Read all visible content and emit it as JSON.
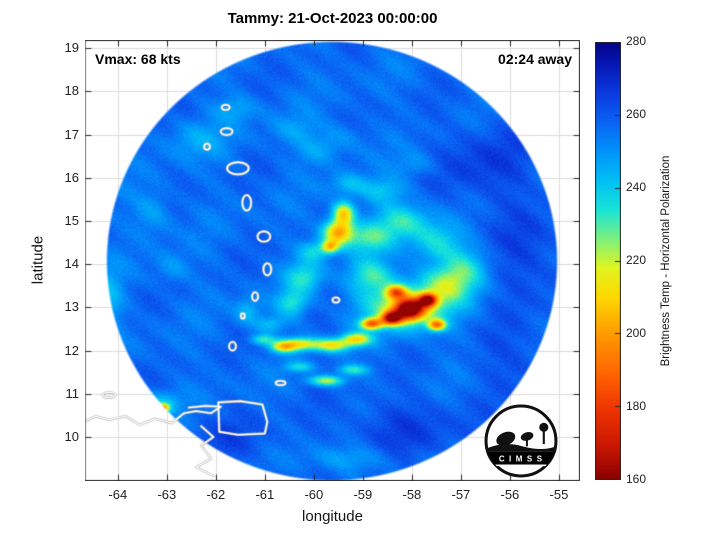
{
  "title": "Tammy: 21-Oct-2023 00:00:00",
  "annotations": {
    "vmax_label": "Vmax: 68 kts",
    "time_label": "02:24 away"
  },
  "axes": {
    "xlabel": "longitude",
    "ylabel": "latitude",
    "xticks": [
      -64,
      -63,
      -62,
      -61,
      -60,
      -59,
      -58,
      -57,
      -56,
      -55
    ],
    "yticks": [
      19,
      18,
      17,
      16,
      15,
      14,
      13,
      12,
      11,
      10
    ],
    "xlim": [
      -64.67,
      -54.57
    ],
    "ylim": [
      8.98,
      19.19
    ]
  },
  "colorbar": {
    "label": "Brightness Temp - Horizontal Polarization",
    "min": 160,
    "max": 280,
    "ticks": [
      160,
      180,
      200,
      220,
      240,
      260,
      280
    ]
  },
  "logo": {
    "text": "C I M S S"
  },
  "chart_data": {
    "type": "heatmap",
    "title": "Tammy: 21-Oct-2023 00:00:00",
    "xlabel": "longitude",
    "ylabel": "latitude",
    "xlim": [
      -64.67,
      -54.57
    ],
    "ylim": [
      8.98,
      19.19
    ],
    "colorbar_label": "Brightness Temp - Horizontal Polarization",
    "colorbar_range": [
      160,
      280
    ],
    "grid": true,
    "disk": {
      "cx": -59.63,
      "cy": 14.07,
      "rx": 4.57,
      "ry": 5.05
    },
    "base_temp": 256.5,
    "noise": {
      "white": 2.2,
      "coarse": 3.2
    },
    "colormap": [
      [
        160,
        140,
        0,
        0
      ],
      [
        170,
        205,
        25,
        0
      ],
      [
        180,
        240,
        55,
        0
      ],
      [
        190,
        255,
        105,
        0
      ],
      [
        200,
        255,
        155,
        0
      ],
      [
        210,
        255,
        215,
        0
      ],
      [
        218,
        225,
        245,
        30
      ],
      [
        226,
        125,
        240,
        125
      ],
      [
        234,
        25,
        228,
        215
      ],
      [
        242,
        0,
        192,
        245
      ],
      [
        250,
        0,
        148,
        250
      ],
      [
        258,
        10,
        100,
        244
      ],
      [
        266,
        10,
        58,
        224
      ],
      [
        274,
        6,
        24,
        180
      ],
      [
        280,
        4,
        4,
        138
      ]
    ],
    "blobs": [
      [
        -58.05,
        12.95,
        0.3,
        0.24,
        88
      ],
      [
        -57.67,
        13.17,
        0.18,
        0.15,
        74
      ],
      [
        -58.41,
        12.75,
        0.2,
        0.15,
        78
      ],
      [
        -58.82,
        12.62,
        0.22,
        0.13,
        60
      ],
      [
        -57.49,
        12.59,
        0.18,
        0.13,
        55
      ],
      [
        -58.32,
        13.35,
        0.2,
        0.15,
        48
      ],
      [
        -58.1,
        13.05,
        0.9,
        0.55,
        36
      ],
      [
        -57.3,
        13.55,
        0.5,
        0.45,
        24
      ],
      [
        -58.85,
        13.75,
        0.45,
        0.38,
        22
      ],
      [
        -59.51,
        14.74,
        0.3,
        0.28,
        52
      ],
      [
        -59.39,
        15.18,
        0.22,
        0.26,
        46
      ],
      [
        -59.67,
        14.4,
        0.18,
        0.15,
        40
      ],
      [
        -58.9,
        14.6,
        0.5,
        0.35,
        24
      ],
      [
        -58.2,
        15.0,
        0.55,
        0.4,
        22
      ],
      [
        -57.5,
        14.5,
        0.5,
        0.45,
        20
      ],
      [
        -56.9,
        13.9,
        0.45,
        0.5,
        18
      ],
      [
        -58.6,
        15.7,
        0.5,
        0.3,
        15
      ],
      [
        -59.3,
        15.85,
        0.35,
        0.25,
        13
      ],
      [
        -60.2,
        13.7,
        0.35,
        0.35,
        22
      ],
      [
        -60.45,
        13.1,
        0.3,
        0.3,
        22
      ],
      [
        -61.35,
        12.9,
        0.25,
        0.3,
        14
      ],
      [
        -60.0,
        14.3,
        0.3,
        0.25,
        18
      ],
      [
        -60.29,
        12.15,
        0.4,
        0.15,
        42
      ],
      [
        -59.62,
        12.12,
        0.35,
        0.15,
        40
      ],
      [
        -60.63,
        12.08,
        0.25,
        0.13,
        34
      ],
      [
        -59.13,
        12.26,
        0.3,
        0.15,
        42
      ],
      [
        -61.05,
        12.25,
        0.25,
        0.12,
        24
      ],
      [
        -60.9,
        12.6,
        0.3,
        0.2,
        15
      ],
      [
        -59.74,
        11.3,
        0.35,
        0.12,
        36
      ],
      [
        -59.2,
        11.55,
        0.3,
        0.12,
        24
      ],
      [
        -60.3,
        11.62,
        0.28,
        0.12,
        18
      ],
      [
        -63.08,
        10.67,
        0.13,
        0.1,
        52
      ],
      [
        -63.1,
        10.8,
        0.4,
        0.25,
        14
      ],
      [
        -62.4,
        16.9,
        0.6,
        0.45,
        10
      ],
      [
        -61.6,
        17.6,
        0.45,
        0.3,
        10
      ],
      [
        -60.4,
        17.1,
        0.5,
        0.35,
        8
      ],
      [
        -63.3,
        15.2,
        0.4,
        0.5,
        10
      ],
      [
        -64.2,
        13.2,
        0.3,
        0.7,
        13
      ],
      [
        -62.9,
        13.9,
        0.35,
        0.35,
        8
      ],
      [
        -60.0,
        16.6,
        0.4,
        0.3,
        8
      ],
      [
        -57.9,
        16.3,
        0.4,
        0.3,
        8
      ],
      [
        -59.5,
        16.9,
        0.45,
        0.35,
        8
      ],
      [
        -59.3,
        9.5,
        0.9,
        0.3,
        10
      ],
      [
        -56.5,
        16.3,
        1.0,
        0.9,
        -9
      ],
      [
        -55.6,
        14.2,
        0.8,
        1.1,
        -8
      ],
      [
        -58.2,
        10.2,
        1.3,
        0.7,
        -8
      ],
      [
        -61.7,
        9.9,
        1.0,
        0.6,
        -6
      ],
      [
        -55.9,
        11.8,
        0.8,
        0.8,
        -6
      ]
    ],
    "coastlines": {
      "islands": [
        [
          -61.8,
          17.63,
          0.08,
          0.06
        ],
        [
          -61.78,
          17.07,
          0.12,
          0.08
        ],
        [
          -62.18,
          16.72,
          0.06,
          0.07
        ],
        [
          -61.55,
          16.22,
          0.22,
          0.14
        ],
        [
          -61.37,
          15.42,
          0.09,
          0.18
        ],
        [
          -61.02,
          14.64,
          0.13,
          0.12
        ],
        [
          -60.95,
          13.88,
          0.08,
          0.14
        ],
        [
          -61.2,
          13.25,
          0.06,
          0.1
        ],
        [
          -61.45,
          12.8,
          0.04,
          0.06
        ],
        [
          -61.66,
          12.1,
          0.07,
          0.1
        ],
        [
          -59.55,
          13.17,
          0.07,
          0.06
        ],
        [
          -60.68,
          11.25,
          0.1,
          0.05
        ],
        [
          -64.18,
          10.97,
          0.13,
          0.06
        ]
      ],
      "lines": [
        [
          [
            -61.95,
            10.8
          ],
          [
            -61.5,
            10.83
          ],
          [
            -61.05,
            10.75
          ],
          [
            -60.95,
            10.35
          ],
          [
            -61.0,
            10.08
          ],
          [
            -61.55,
            10.05
          ],
          [
            -61.93,
            10.12
          ],
          [
            -61.95,
            10.8
          ]
        ],
        [
          [
            -64.78,
            10.3
          ],
          [
            -64.45,
            10.48
          ],
          [
            -64.18,
            10.4
          ],
          [
            -63.85,
            10.48
          ],
          [
            -63.55,
            10.28
          ],
          [
            -63.25,
            10.42
          ],
          [
            -62.9,
            10.32
          ],
          [
            -62.65,
            10.55
          ],
          [
            -62.4,
            10.6
          ],
          [
            -62.1,
            10.55
          ],
          [
            -61.9,
            10.7
          ],
          [
            -62.2,
            10.72
          ],
          [
            -62.55,
            10.68
          ]
        ],
        [
          [
            -62.3,
            10.25
          ],
          [
            -62.05,
            10.0
          ],
          [
            -62.3,
            9.8
          ],
          [
            -62.1,
            9.5
          ],
          [
            -62.4,
            9.3
          ],
          [
            -62.05,
            9.1
          ]
        ]
      ]
    }
  }
}
